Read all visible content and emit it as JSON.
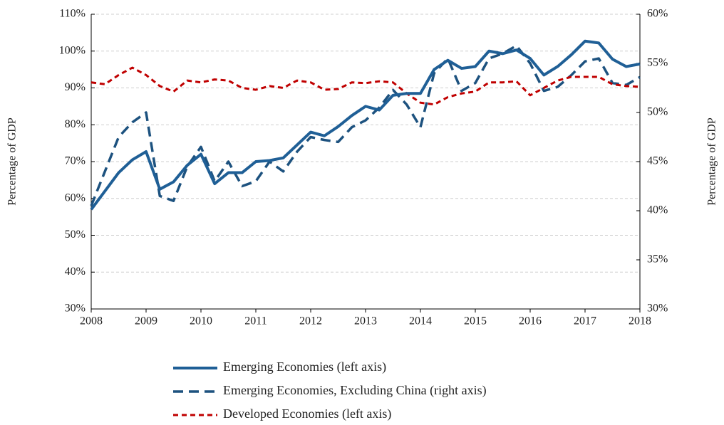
{
  "chart_data": {
    "type": "line",
    "x": [
      2008,
      2008.25,
      2008.5,
      2008.75,
      2009,
      2009.25,
      2009.5,
      2009.75,
      2010,
      2010.25,
      2010.5,
      2010.75,
      2011,
      2011.25,
      2011.5,
      2011.75,
      2012,
      2012.25,
      2012.5,
      2012.75,
      2013,
      2013.25,
      2013.5,
      2013.75,
      2014,
      2014.25,
      2014.5,
      2014.75,
      2015,
      2015.25,
      2015.5,
      2015.75,
      2016,
      2016.25,
      2016.5,
      2016.75,
      2017,
      2017.25,
      2017.5,
      2017.75,
      2018
    ],
    "series": [
      {
        "name": "Emerging Economies (left axis)",
        "color": "#1f5f96",
        "dash": "solid",
        "values": [
          57,
          62,
          67,
          70.5,
          72.7,
          62.5,
          64.5,
          69,
          72,
          64,
          67,
          67,
          70,
          70.3,
          71,
          74.5,
          78,
          77,
          79.5,
          82.5,
          85,
          84,
          88,
          88.5,
          88.5,
          95,
          97.5,
          95.3,
          95.8,
          100,
          99.3,
          100.3,
          98,
          93.5,
          95.8,
          99,
          102.7,
          102.2,
          97.8,
          95.8,
          96.5
        ]
      },
      {
        "name": "Emerging Economies, Excluding China (right axis)",
        "color": "#1d527f",
        "dash": "dashed",
        "axis": "y2",
        "values": [
          40.5,
          44,
          47.5,
          49,
          50,
          41.5,
          41,
          44.5,
          46.5,
          43,
          45,
          42.5,
          43,
          45,
          44,
          46,
          47.5,
          47.2,
          47,
          48.5,
          49.2,
          50.5,
          52.3,
          50.8,
          48.5,
          54,
          55.5,
          52.2,
          53,
          55.5,
          56,
          56.8,
          55,
          52.2,
          52.6,
          53.8,
          55.2,
          55.5,
          53,
          52.8,
          53.6
        ]
      },
      {
        "name": "Developed Economies (left axis)",
        "color": "#c00000",
        "dash": "dashed",
        "values": [
          91.5,
          91,
          93.5,
          95.5,
          93.5,
          90.5,
          89,
          92,
          91.5,
          92.3,
          92,
          90,
          89.5,
          90.5,
          90,
          92,
          91.5,
          89.5,
          89.7,
          91.5,
          91.3,
          91.8,
          91.5,
          88.5,
          86,
          85.5,
          87.5,
          88.5,
          89,
          91.5,
          91.5,
          91.8,
          88,
          90,
          92,
          93,
          93,
          93,
          91,
          90.5,
          90.3
        ]
      }
    ],
    "ylabel": "Percentage of GDP",
    "y2label": "Percentage of GDP",
    "xlim": [
      2008,
      2018
    ],
    "xticks": [
      2008,
      2009,
      2010,
      2011,
      2012,
      2013,
      2014,
      2015,
      2016,
      2017,
      2018
    ],
    "ylim": [
      30,
      110
    ],
    "yticks": [
      {
        "value": 30,
        "label": "30%"
      },
      {
        "value": 40,
        "label": "40%"
      },
      {
        "value": 50,
        "label": "50%"
      },
      {
        "value": 60,
        "label": "60%"
      },
      {
        "value": 70,
        "label": "70%"
      },
      {
        "value": 80,
        "label": "80%"
      },
      {
        "value": 90,
        "label": "90%"
      },
      {
        "value": 100,
        "label": "100%"
      },
      {
        "value": 110,
        "label": "110%"
      }
    ],
    "y2lim": [
      30,
      60
    ],
    "y2ticks": [
      {
        "value": 30,
        "label": "30%"
      },
      {
        "value": 35,
        "label": "35%"
      },
      {
        "value": 40,
        "label": "40%"
      },
      {
        "value": 45,
        "label": "45%"
      },
      {
        "value": 50,
        "label": "50%"
      },
      {
        "value": 55,
        "label": "55%"
      },
      {
        "value": 60,
        "label": "60%"
      }
    ],
    "grid": true
  }
}
